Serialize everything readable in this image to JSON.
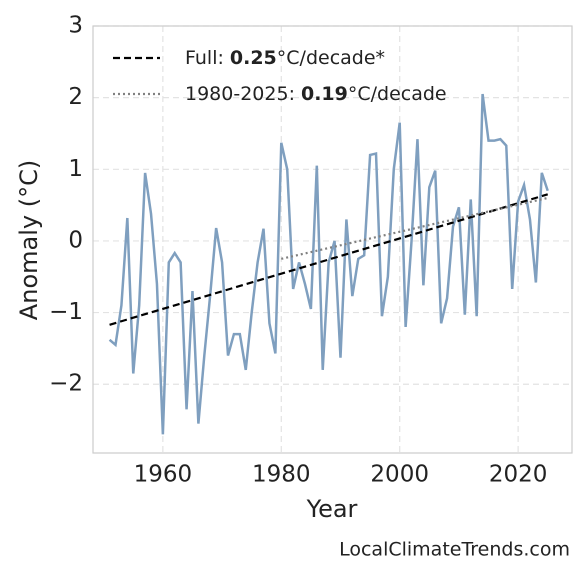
{
  "chart_data": {
    "type": "line",
    "xlabel": "Year",
    "ylabel": "Anomaly (°C)",
    "watermark": "LocalClimateTrends.com",
    "xlim": [
      1948.2,
      2029.1
    ],
    "ylim": [
      -2.96,
      3
    ],
    "xticks": [
      1960,
      1980,
      2000,
      2020
    ],
    "yticks": [
      {
        "value": -2,
        "label": "−2"
      },
      {
        "value": -1,
        "label": "−1"
      },
      0,
      1,
      2,
      3
    ],
    "grid": true,
    "legend": "upper left",
    "x": [
      1951,
      1952,
      1953,
      1954,
      1955,
      1956,
      1957,
      1958,
      1959,
      1960,
      1961,
      1962,
      1963,
      1964,
      1965,
      1966,
      1967,
      1968,
      1969,
      1970,
      1971,
      1972,
      1973,
      1974,
      1975,
      1976,
      1977,
      1978,
      1979,
      1980,
      1981,
      1982,
      1983,
      1984,
      1985,
      1986,
      1987,
      1988,
      1989,
      1990,
      1991,
      1992,
      1993,
      1994,
      1995,
      1996,
      1997,
      1998,
      1999,
      2000,
      2001,
      2002,
      2003,
      2004,
      2005,
      2006,
      2007,
      2008,
      2009,
      2010,
      2011,
      2012,
      2013,
      2014,
      2015,
      2016,
      2017,
      2018,
      2019,
      2020,
      2021,
      2022,
      2023,
      2024,
      2025
    ],
    "series": [
      {
        "color": "#7f9fbf",
        "values": [
          -1.38,
          -1.45,
          -0.9,
          0.32,
          -1.85,
          -0.9,
          0.95,
          0.38,
          -0.6,
          -2.7,
          -0.3,
          -0.17,
          -0.3,
          -2.35,
          -0.7,
          -2.55,
          -1.6,
          -0.75,
          0.18,
          -0.3,
          -1.6,
          -1.3,
          -1.3,
          -1.8,
          -1.0,
          -0.3,
          0.17,
          -1.15,
          -1.57,
          1.37,
          1.0,
          -0.67,
          -0.3,
          -0.6,
          -0.95,
          1.05,
          -1.8,
          -0.3,
          0.0,
          -1.63,
          0.3,
          -0.77,
          -0.25,
          -0.2,
          1.2,
          1.22,
          -1.05,
          -0.5,
          1.0,
          1.65,
          -1.2,
          0.0,
          1.42,
          -0.62,
          0.75,
          0.98,
          -1.15,
          -0.8,
          0.2,
          0.47,
          -1.03,
          0.58,
          -1.05,
          2.05,
          1.4,
          1.4,
          1.42,
          1.33,
          -0.67,
          0.55,
          0.78,
          0.3,
          -0.58,
          0.95,
          0.7
        ]
      }
    ],
    "trends": [
      {
        "name": "Full:",
        "rate": 0.25,
        "unit": "°C/decade*",
        "color": "#000000",
        "dash": "dashed",
        "x": [
          1951,
          2025
        ],
        "values": [
          -1.17,
          0.65
        ]
      },
      {
        "name": "1980-2025:",
        "rate": 0.19,
        "unit": "°C/decade",
        "color": "#808080",
        "dash": "dotted",
        "x": [
          1980,
          2025
        ],
        "values": [
          -0.25,
          0.6
        ]
      }
    ]
  }
}
